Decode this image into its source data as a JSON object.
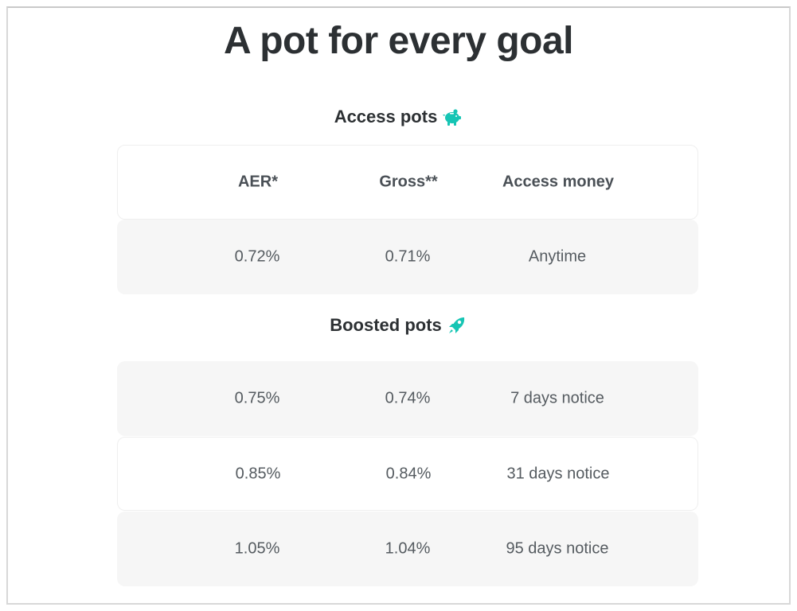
{
  "page": {
    "title": "A pot for every goal"
  },
  "access_section": {
    "title": "Access pots",
    "icon": "piggy-bank-icon",
    "headers": {
      "aer": "AER*",
      "gross": "Gross**",
      "access": "Access money"
    },
    "rows": [
      {
        "aer": "0.72%",
        "gross": "0.71%",
        "access": "Anytime"
      }
    ]
  },
  "boosted_section": {
    "title": "Boosted pots",
    "icon": "rocket-icon",
    "rows": [
      {
        "aer": "0.75%",
        "gross": "0.74%",
        "access": "7 days notice"
      },
      {
        "aer": "0.85%",
        "gross": "0.84%",
        "access": "31 days notice"
      },
      {
        "aer": "1.05%",
        "gross": "1.04%",
        "access": "95 days notice"
      }
    ]
  },
  "colors": {
    "accent": "#16c5b4",
    "text": "#2c3033",
    "muted_text": "#555b60",
    "row_grey": "#f6f6f6"
  }
}
